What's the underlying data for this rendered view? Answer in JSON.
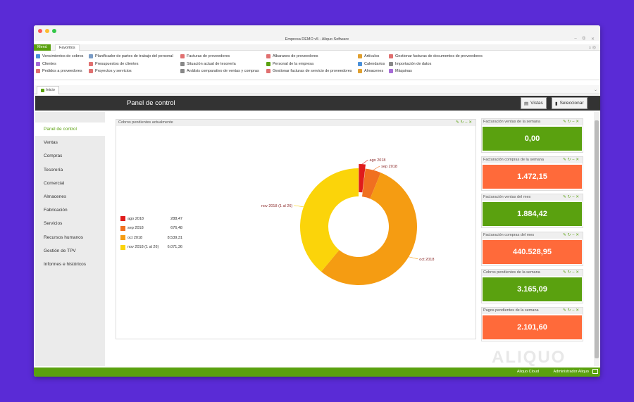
{
  "window": {
    "title": "Empresa DEMO v5 - Aliquo Software"
  },
  "ribbon_tabs": {
    "menu": "Menú",
    "favoritos": "Favoritos"
  },
  "ribbon": {
    "col1": [
      "Vencimientos de cobros",
      "Clientes",
      "Pedidos a proveedores"
    ],
    "col2": [
      "Planificador de partes de trabajo del personal",
      "Presupuestos de clientes",
      "Proyectos y servicios"
    ],
    "col3": [
      "Facturas de proveedores",
      "Situación actual de tesorería",
      "Análisis comparativo de ventas y compras"
    ],
    "col4": [
      "Albaranes de proveedores",
      "Personal de la empresa",
      "Gestionar facturas de servicio de proveedores"
    ],
    "col5": [
      "Artículos",
      "Calendarios",
      "Almacenes"
    ],
    "col6": [
      "Gestionar facturas de documentos de proveedores",
      "Importación de datos",
      "Máquinas"
    ]
  },
  "doc_tab": {
    "label": "Inicio"
  },
  "header": {
    "title": "Panel de control",
    "vistas": "Vistas",
    "seleccionar": "Seleccionar"
  },
  "sidebar": {
    "items": [
      "Panel de control",
      "Ventas",
      "Compras",
      "Tesorería",
      "Comercial",
      "Almacenes",
      "Fabricación",
      "Servicios",
      "Recursos humanos",
      "Gestión de TPV",
      "Informes e históricos"
    ]
  },
  "panel": {
    "title": "Cobros pendientes actualmente"
  },
  "chart_data": {
    "type": "pie",
    "categories": [
      "ago 2018",
      "sep 2018",
      "oct 2018",
      "nov 2018 (1 al 26)"
    ],
    "values": [
      288.47,
      676.48,
      8539.31,
      6071.36
    ],
    "value_labels": [
      "288,47",
      "676,48",
      "8.539,31",
      "6.071,36"
    ],
    "colors": [
      "#e01b1b",
      "#f07020",
      "#f59c12",
      "#fbd40a"
    ],
    "legend": "left"
  },
  "cards": [
    {
      "title": "Facturación ventas de la semana",
      "value": "0,00",
      "color": "#5aa10f"
    },
    {
      "title": "Facturación compras de la semana",
      "value": "1.472,15",
      "color": "#ff6a3a"
    },
    {
      "title": "Facturación ventas del mes",
      "value": "1.884,42",
      "color": "#5aa10f"
    },
    {
      "title": "Facturación compras del mes",
      "value": "440.528,95",
      "color": "#ff6a3a"
    },
    {
      "title": "Cobros pendientes de la semana",
      "value": "3.165,09",
      "color": "#5aa10f"
    },
    {
      "title": "Pagos pendientes de la semana",
      "value": "2.101,60",
      "color": "#ff6a3a"
    }
  ],
  "status": {
    "cloud": "Aliquo Cloud",
    "user": "Administrador Aliquo"
  },
  "watermark": "ALIQUO"
}
